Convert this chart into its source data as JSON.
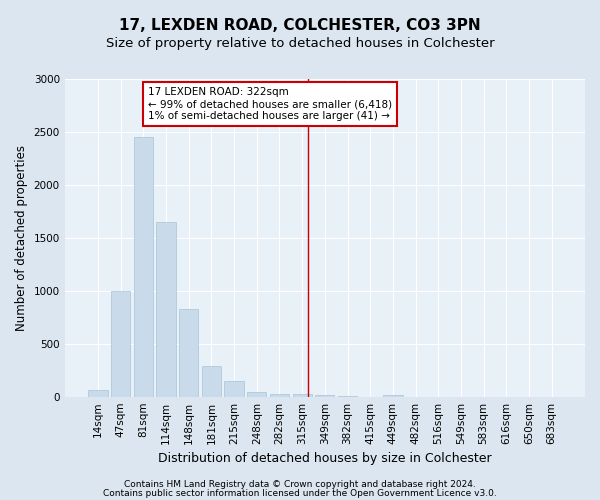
{
  "title1": "17, LEXDEN ROAD, COLCHESTER, CO3 3PN",
  "title2": "Size of property relative to detached houses in Colchester",
  "xlabel": "Distribution of detached houses by size in Colchester",
  "ylabel": "Number of detached properties",
  "footnote1": "Contains HM Land Registry data © Crown copyright and database right 2024.",
  "footnote2": "Contains public sector information licensed under the Open Government Licence v3.0.",
  "bar_labels": [
    "14sqm",
    "47sqm",
    "81sqm",
    "114sqm",
    "148sqm",
    "181sqm",
    "215sqm",
    "248sqm",
    "282sqm",
    "315sqm",
    "349sqm",
    "382sqm",
    "415sqm",
    "449sqm",
    "482sqm",
    "516sqm",
    "549sqm",
    "583sqm",
    "616sqm",
    "650sqm",
    "683sqm"
  ],
  "bar_values": [
    60,
    1000,
    2450,
    1650,
    830,
    290,
    145,
    45,
    30,
    30,
    20,
    10,
    0,
    15,
    0,
    0,
    0,
    0,
    0,
    0,
    0
  ],
  "bar_color": "#c9daea",
  "bar_edge_color": "#a8c4da",
  "vline_x": 9.27,
  "vline_color": "#cc0000",
  "annotation_text": "17 LEXDEN ROAD: 322sqm\n← 99% of detached houses are smaller (6,418)\n1% of semi-detached houses are larger (41) →",
  "annotation_box_color": "#ffffff",
  "annotation_box_edge_color": "#cc0000",
  "ylim": [
    0,
    3000
  ],
  "yticks": [
    0,
    500,
    1000,
    1500,
    2000,
    2500,
    3000
  ],
  "bg_color": "#dce6f0",
  "plot_bg_color": "#e8f0f8",
  "grid_color": "#ffffff",
  "title1_fontsize": 11,
  "title2_fontsize": 9.5,
  "xlabel_fontsize": 9,
  "ylabel_fontsize": 8.5,
  "tick_fontsize": 7.5,
  "annotation_fontsize": 7.5,
  "footnote_fontsize": 6.5
}
